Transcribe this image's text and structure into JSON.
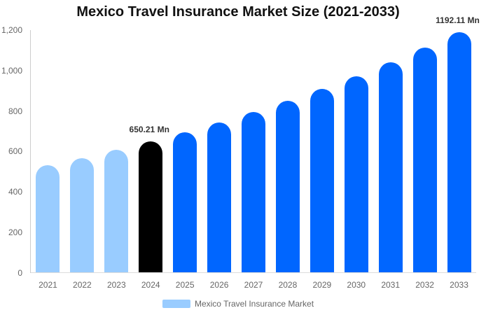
{
  "chart_data": {
    "type": "bar",
    "title": "Mexico Travel Insurance Market Size (2021-2033)",
    "unit": "Mn",
    "categories": [
      "2021",
      "2022",
      "2023",
      "2024",
      "2025",
      "2026",
      "2027",
      "2028",
      "2029",
      "2030",
      "2031",
      "2032",
      "2033"
    ],
    "values": [
      531.25,
      568.26,
      607.86,
      650.21,
      695.51,
      743.97,
      795.81,
      851.25,
      910.56,
      974.01,
      1041.87,
      1114.46,
      1192.11
    ],
    "bar_colors": [
      "#99ccff",
      "#99ccff",
      "#99ccff",
      "#000000",
      "#0066ff",
      "#0066ff",
      "#0066ff",
      "#0066ff",
      "#0066ff",
      "#0066ff",
      "#0066ff",
      "#0066ff",
      "#0066ff"
    ],
    "data_labels": {
      "2024": "650.21 Mn",
      "2033": "1192.11 Mn"
    },
    "xlabel": "",
    "ylabel": "",
    "ylim": [
      0,
      1200
    ],
    "yticks": [
      0,
      200,
      400,
      600,
      800,
      1000,
      1200
    ],
    "ytick_labels": [
      "0",
      "200",
      "400",
      "600",
      "800",
      "1,000",
      "1,200"
    ],
    "grid": false,
    "legend_position": "bottom",
    "legend": {
      "label": "Mexico Travel Insurance Market",
      "swatch_color": "#99ccff"
    },
    "colors": {
      "historical": "#99ccff",
      "base_year": "#000000",
      "forecast": "#0066ff"
    }
  }
}
